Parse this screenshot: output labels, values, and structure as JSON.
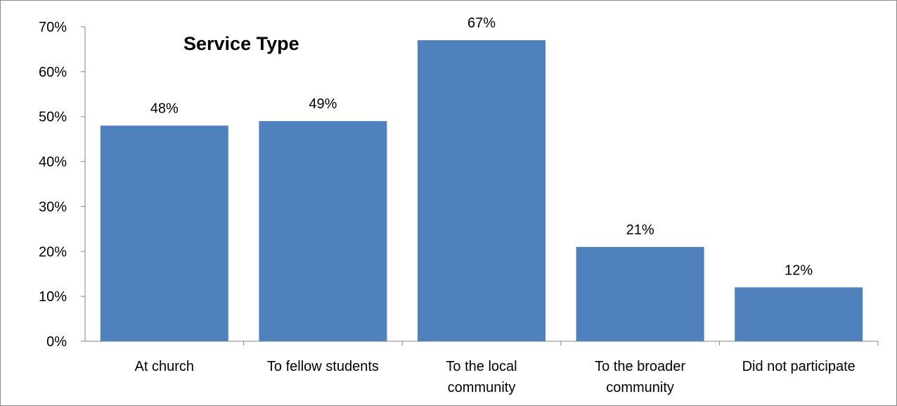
{
  "chart_data": {
    "type": "bar",
    "title": "Service Type",
    "categories": [
      [
        "At church"
      ],
      [
        "To fellow students"
      ],
      [
        "To the local",
        "community"
      ],
      [
        "To the broader",
        "community"
      ],
      [
        "Did not participate"
      ]
    ],
    "values": [
      48,
      49,
      67,
      21,
      12
    ],
    "data_labels": [
      "48%",
      "49%",
      "67%",
      "21%",
      "12%"
    ],
    "y_ticks": [
      0,
      10,
      20,
      30,
      40,
      50,
      60,
      70
    ],
    "y_tick_labels": [
      "0%",
      "10%",
      "20%",
      "30%",
      "40%",
      "50%",
      "60%",
      "70%"
    ],
    "ylim": [
      0,
      70
    ],
    "xlabel": "",
    "ylabel": "",
    "grid": false,
    "legend": "none",
    "colors": {
      "bar": "#4f81bd",
      "axis": "#868686"
    }
  }
}
